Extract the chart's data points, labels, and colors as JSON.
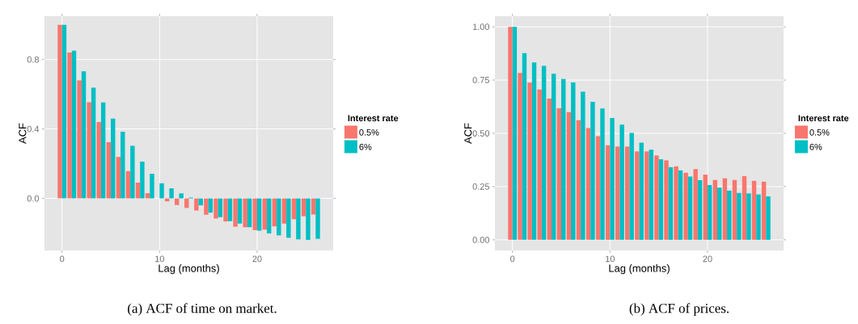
{
  "chart_data": [
    {
      "type": "bar",
      "xlabel": "Lag (months)",
      "ylabel": "ACF",
      "legend_title": "Interest rate",
      "legend": "right",
      "grid": true,
      "x": [
        0,
        1,
        2,
        3,
        4,
        5,
        6,
        7,
        8,
        9,
        10,
        11,
        12,
        13,
        14,
        15,
        16,
        17,
        18,
        19,
        20,
        21,
        22,
        23,
        24,
        25,
        26
      ],
      "xlim": [
        -1.8,
        27.8
      ],
      "ylim": [
        -0.3,
        1.05
      ],
      "xticks": [
        0,
        10,
        20
      ],
      "yticks": [
        {
          "value": 0,
          "label": "0.0"
        },
        {
          "value": 0.4,
          "label": "0.4"
        },
        {
          "value": 0.8,
          "label": "0.8"
        }
      ],
      "series": [
        {
          "name": "0.5%",
          "color": "#f8766d",
          "values": [
            1.0,
            0.84,
            0.68,
            0.554,
            0.44,
            0.324,
            0.239,
            0.157,
            0.091,
            0.03,
            0.0,
            -0.017,
            -0.038,
            -0.055,
            -0.07,
            -0.094,
            -0.116,
            -0.133,
            -0.163,
            -0.166,
            -0.183,
            -0.18,
            -0.161,
            -0.145,
            -0.12,
            -0.103,
            -0.093
          ]
        },
        {
          "name": "6%",
          "color": "#00bfc4",
          "values": [
            1.0,
            0.851,
            0.732,
            0.638,
            0.553,
            0.46,
            0.384,
            0.303,
            0.212,
            0.142,
            0.087,
            0.058,
            0.029,
            0.005,
            -0.04,
            -0.082,
            -0.108,
            -0.131,
            -0.145,
            -0.166,
            -0.186,
            -0.202,
            -0.213,
            -0.227,
            -0.236,
            -0.239,
            -0.233
          ]
        }
      ],
      "annotations": [
        "(a) ACF of time on market."
      ]
    },
    {
      "type": "bar",
      "xlabel": "Lag (months)",
      "ylabel": "ACF",
      "legend_title": "Interest rate",
      "legend": "right",
      "grid": true,
      "x": [
        0,
        1,
        2,
        3,
        4,
        5,
        6,
        7,
        8,
        9,
        10,
        11,
        12,
        13,
        14,
        15,
        16,
        17,
        18,
        19,
        20,
        21,
        22,
        23,
        24,
        25,
        26
      ],
      "xlim": [
        -1.8,
        27.8
      ],
      "ylim": [
        -0.05,
        1.05
      ],
      "xticks": [
        0,
        10,
        20
      ],
      "yticks": [
        {
          "value": 0,
          "label": "0.00"
        },
        {
          "value": 0.25,
          "label": "0.25"
        },
        {
          "value": 0.5,
          "label": "0.50"
        },
        {
          "value": 0.75,
          "label": "0.75"
        },
        {
          "value": 1,
          "label": "1.00"
        }
      ],
      "series": [
        {
          "name": "0.5%",
          "color": "#f8766d",
          "values": [
            1.0,
            0.784,
            0.738,
            0.706,
            0.663,
            0.618,
            0.6,
            0.562,
            0.525,
            0.487,
            0.444,
            0.438,
            0.438,
            0.415,
            0.415,
            0.396,
            0.373,
            0.345,
            0.315,
            0.332,
            0.306,
            0.281,
            0.289,
            0.281,
            0.299,
            0.277,
            0.273
          ]
        },
        {
          "name": "6%",
          "color": "#00bfc4",
          "values": [
            1.0,
            0.876,
            0.833,
            0.817,
            0.78,
            0.755,
            0.739,
            0.695,
            0.648,
            0.617,
            0.572,
            0.541,
            0.502,
            0.456,
            0.423,
            0.378,
            0.341,
            0.326,
            0.297,
            0.28,
            0.257,
            0.245,
            0.231,
            0.22,
            0.218,
            0.213,
            0.204
          ]
        }
      ],
      "annotations": [
        "(b) ACF of prices."
      ]
    }
  ]
}
